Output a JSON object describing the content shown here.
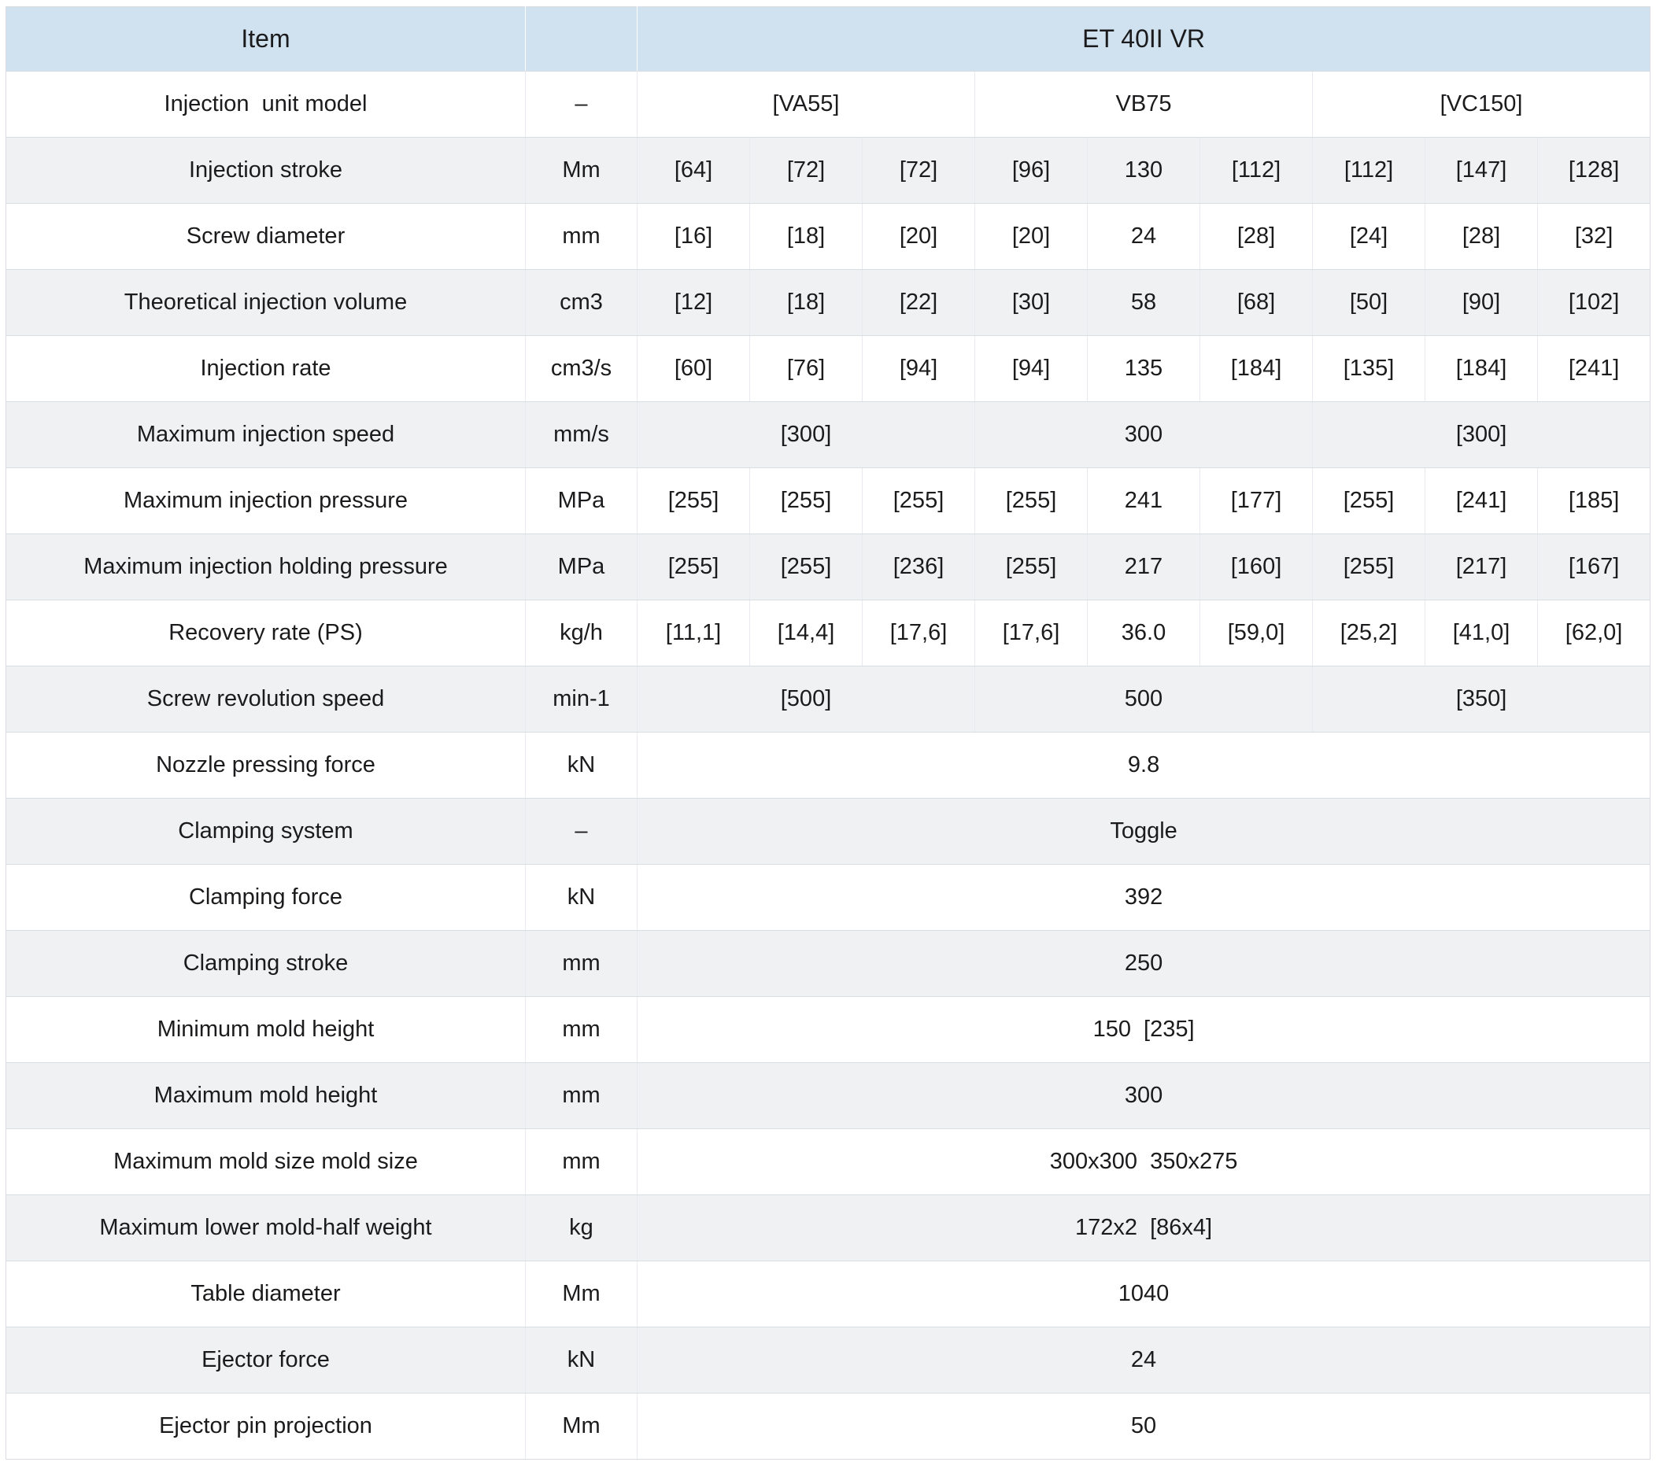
{
  "table": {
    "header": {
      "item_label": "Item",
      "unit_spacer": "",
      "model_label": "ET 40II VR"
    },
    "colors": {
      "header_bg": "#d0e2ef",
      "stripe_bg": "#f0f1f3",
      "row_bg": "#ffffff",
      "border_h": "#d9dde2",
      "border_v": "#e7eaee",
      "text": "#1b1b1d"
    },
    "value_column_count": 9,
    "rows": [
      {
        "label": "Injection  unit model",
        "unit": "–",
        "cells": [
          {
            "v": "[VA55]",
            "s": 3
          },
          {
            "v": "VB75",
            "s": 3
          },
          {
            "v": "[VC150]",
            "s": 3
          }
        ]
      },
      {
        "label": "Injection stroke",
        "unit": "Mm",
        "cells": [
          {
            "v": "[64]",
            "s": 1
          },
          {
            "v": "[72]",
            "s": 1
          },
          {
            "v": "[72]",
            "s": 1
          },
          {
            "v": "[96]",
            "s": 1
          },
          {
            "v": "130",
            "s": 1
          },
          {
            "v": "[112]",
            "s": 1
          },
          {
            "v": "[112]",
            "s": 1
          },
          {
            "v": "[147]",
            "s": 1
          },
          {
            "v": "[128]",
            "s": 1
          }
        ]
      },
      {
        "label": "Screw diameter",
        "unit": "mm",
        "cells": [
          {
            "v": "[16]",
            "s": 1
          },
          {
            "v": "[18]",
            "s": 1
          },
          {
            "v": "[20]",
            "s": 1
          },
          {
            "v": "[20]",
            "s": 1
          },
          {
            "v": "24",
            "s": 1
          },
          {
            "v": "[28]",
            "s": 1
          },
          {
            "v": "[24]",
            "s": 1
          },
          {
            "v": "[28]",
            "s": 1
          },
          {
            "v": "[32]",
            "s": 1
          }
        ]
      },
      {
        "label": "Theoretical injection volume",
        "unit": "cm3",
        "cells": [
          {
            "v": "[12]",
            "s": 1
          },
          {
            "v": "[18]",
            "s": 1
          },
          {
            "v": "[22]",
            "s": 1
          },
          {
            "v": "[30]",
            "s": 1
          },
          {
            "v": "58",
            "s": 1
          },
          {
            "v": "[68]",
            "s": 1
          },
          {
            "v": "[50]",
            "s": 1
          },
          {
            "v": "[90]",
            "s": 1
          },
          {
            "v": "[102]",
            "s": 1
          }
        ]
      },
      {
        "label": "Injection rate",
        "unit": "cm3/s",
        "cells": [
          {
            "v": "[60]",
            "s": 1
          },
          {
            "v": "[76]",
            "s": 1
          },
          {
            "v": "[94]",
            "s": 1
          },
          {
            "v": "[94]",
            "s": 1
          },
          {
            "v": "135",
            "s": 1
          },
          {
            "v": "[184]",
            "s": 1
          },
          {
            "v": "[135]",
            "s": 1
          },
          {
            "v": "[184]",
            "s": 1
          },
          {
            "v": "[241]",
            "s": 1
          }
        ]
      },
      {
        "label": "Maximum injection speed",
        "unit": "mm/s",
        "cells": [
          {
            "v": "[300]",
            "s": 3
          },
          {
            "v": "300",
            "s": 3
          },
          {
            "v": "[300]",
            "s": 3
          }
        ]
      },
      {
        "label": "Maximum injection pressure",
        "unit": "MPa",
        "cells": [
          {
            "v": "[255]",
            "s": 1
          },
          {
            "v": "[255]",
            "s": 1
          },
          {
            "v": "[255]",
            "s": 1
          },
          {
            "v": "[255]",
            "s": 1
          },
          {
            "v": "241",
            "s": 1
          },
          {
            "v": "[177]",
            "s": 1
          },
          {
            "v": "[255]",
            "s": 1
          },
          {
            "v": "[241]",
            "s": 1
          },
          {
            "v": "[185]",
            "s": 1
          }
        ]
      },
      {
        "label": "Maximum injection holding pressure",
        "unit": "MPa",
        "cells": [
          {
            "v": "[255]",
            "s": 1
          },
          {
            "v": "[255]",
            "s": 1
          },
          {
            "v": "[236]",
            "s": 1
          },
          {
            "v": "[255]",
            "s": 1
          },
          {
            "v": "217",
            "s": 1
          },
          {
            "v": "[160]",
            "s": 1
          },
          {
            "v": "[255]",
            "s": 1
          },
          {
            "v": "[217]",
            "s": 1
          },
          {
            "v": "[167]",
            "s": 1
          }
        ]
      },
      {
        "label": "Recovery rate (PS)",
        "unit": "kg/h",
        "cells": [
          {
            "v": "[11,1]",
            "s": 1
          },
          {
            "v": "[14,4]",
            "s": 1
          },
          {
            "v": "[17,6]",
            "s": 1
          },
          {
            "v": "[17,6]",
            "s": 1
          },
          {
            "v": "36.0",
            "s": 1
          },
          {
            "v": "[59,0]",
            "s": 1
          },
          {
            "v": "[25,2]",
            "s": 1
          },
          {
            "v": "[41,0]",
            "s": 1
          },
          {
            "v": "[62,0]",
            "s": 1
          }
        ]
      },
      {
        "label": "Screw revolution speed",
        "unit": "min-1",
        "cells": [
          {
            "v": "[500]",
            "s": 3
          },
          {
            "v": "500",
            "s": 3
          },
          {
            "v": "[350]",
            "s": 3
          }
        ]
      },
      {
        "label": "Nozzle pressing force",
        "unit": "kN",
        "cells": [
          {
            "v": "9.8",
            "s": 9
          }
        ]
      },
      {
        "label": "Clamping system",
        "unit": "–",
        "cells": [
          {
            "v": "Toggle",
            "s": 9
          }
        ]
      },
      {
        "label": "Clamping force",
        "unit": "kN",
        "cells": [
          {
            "v": "392",
            "s": 9
          }
        ]
      },
      {
        "label": "Clamping stroke",
        "unit": "mm",
        "cells": [
          {
            "v": "250",
            "s": 9
          }
        ]
      },
      {
        "label": "Minimum mold height",
        "unit": "mm",
        "cells": [
          {
            "v": "150  [235]",
            "s": 9
          }
        ]
      },
      {
        "label": "Maximum mold height",
        "unit": "mm",
        "cells": [
          {
            "v": "300",
            "s": 9
          }
        ]
      },
      {
        "label": "Maximum mold size mold size",
        "unit": "mm",
        "cells": [
          {
            "v": "300x300  350x275",
            "s": 9
          }
        ]
      },
      {
        "label": "Maximum lower mold-half weight",
        "unit": "kg",
        "cells": [
          {
            "v": "172x2  [86x4]",
            "s": 9
          }
        ]
      },
      {
        "label": "Table diameter",
        "unit": "Mm",
        "cells": [
          {
            "v": "1040",
            "s": 9
          }
        ]
      },
      {
        "label": "Ejector force",
        "unit": "kN",
        "cells": [
          {
            "v": "24",
            "s": 9
          }
        ]
      },
      {
        "label": "Ejector pin projection",
        "unit": "Mm",
        "cells": [
          {
            "v": "50",
            "s": 9
          }
        ]
      }
    ]
  }
}
